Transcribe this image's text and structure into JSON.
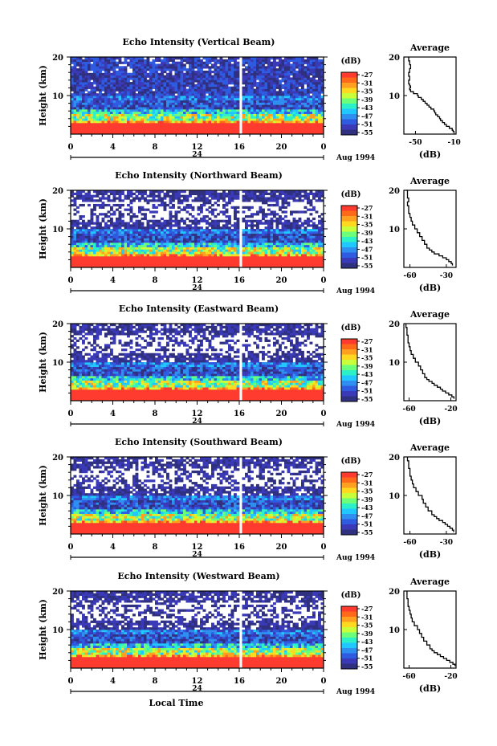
{
  "chart_data": {
    "type": "heatmap",
    "panels": [
      {
        "title": "Echo Intensity (Vertical Beam)",
        "profile_title": "Average",
        "profile_xticks": [
          "-50",
          "-10"
        ],
        "profile_xlim": [
          -62,
          -8
        ],
        "profile": [
          [
            0.5,
            -11
          ],
          [
            1,
            -12
          ],
          [
            1.5,
            -15
          ],
          [
            2,
            -18
          ],
          [
            2.5,
            -20
          ],
          [
            3,
            -22
          ],
          [
            3.5,
            -24
          ],
          [
            4,
            -25
          ],
          [
            4.5,
            -27
          ],
          [
            5,
            -29
          ],
          [
            5.5,
            -30
          ],
          [
            6,
            -31
          ],
          [
            6.5,
            -34
          ],
          [
            7,
            -36
          ],
          [
            7.5,
            -38
          ],
          [
            8,
            -40
          ],
          [
            8.5,
            -42
          ],
          [
            9,
            -44
          ],
          [
            9.5,
            -47
          ],
          [
            10,
            -48
          ],
          [
            10.5,
            -52
          ],
          [
            11,
            -55
          ],
          [
            11.5,
            -56
          ],
          [
            12,
            -55
          ],
          [
            12.5,
            -56
          ],
          [
            13,
            -57
          ],
          [
            14,
            -56
          ],
          [
            15,
            -57
          ],
          [
            16,
            -56
          ],
          [
            17,
            -55
          ],
          [
            18,
            -56
          ],
          [
            19,
            -57
          ],
          [
            20,
            -57
          ]
        ]
      },
      {
        "title": "Echo Intensity (Northward Beam)",
        "profile_title": "Average",
        "profile_xticks": [
          "-60",
          "-30"
        ],
        "profile_xlim": [
          -65,
          -22
        ],
        "profile": [
          [
            0.5,
            -25
          ],
          [
            1,
            -26
          ],
          [
            1.5,
            -28
          ],
          [
            2,
            -30
          ],
          [
            2.5,
            -33
          ],
          [
            3,
            -36
          ],
          [
            3.5,
            -40
          ],
          [
            4,
            -42
          ],
          [
            4.5,
            -44
          ],
          [
            5,
            -46
          ],
          [
            6,
            -48
          ],
          [
            7,
            -50
          ],
          [
            8,
            -52
          ],
          [
            9,
            -54
          ],
          [
            10,
            -56
          ],
          [
            11,
            -58
          ],
          [
            12,
            -59
          ],
          [
            13,
            -60
          ],
          [
            14,
            -61
          ],
          [
            15,
            -61
          ],
          [
            16,
            -62
          ],
          [
            17,
            -61
          ],
          [
            18,
            -62
          ],
          [
            19,
            -62
          ],
          [
            20,
            -63
          ]
        ]
      },
      {
        "title": "Echo Intensity (Eastward Beam)",
        "profile_title": "Average",
        "profile_xticks": [
          "-60",
          "-20"
        ],
        "profile_xlim": [
          -65,
          -15
        ],
        "profile": [
          [
            0.5,
            -17
          ],
          [
            1,
            -19
          ],
          [
            1.5,
            -22
          ],
          [
            2,
            -25
          ],
          [
            2.5,
            -28
          ],
          [
            3,
            -30
          ],
          [
            3.5,
            -33
          ],
          [
            4,
            -36
          ],
          [
            4.5,
            -38
          ],
          [
            5,
            -41
          ],
          [
            5.5,
            -43
          ],
          [
            6,
            -45
          ],
          [
            7,
            -47
          ],
          [
            8,
            -49
          ],
          [
            9,
            -51
          ],
          [
            10,
            -54
          ],
          [
            11,
            -56
          ],
          [
            12,
            -58
          ],
          [
            13,
            -59
          ],
          [
            14,
            -60
          ],
          [
            15,
            -61
          ],
          [
            16,
            -61
          ],
          [
            17,
            -62
          ],
          [
            18,
            -62
          ],
          [
            19,
            -63
          ],
          [
            20,
            -63
          ]
        ]
      },
      {
        "title": "Echo Intensity (Southward Beam)",
        "profile_title": "Average",
        "profile_xticks": [
          "-60",
          "-30"
        ],
        "profile_xlim": [
          -65,
          -22
        ],
        "profile": [
          [
            0.5,
            -24
          ],
          [
            1,
            -25
          ],
          [
            1.5,
            -27
          ],
          [
            2,
            -29
          ],
          [
            2.5,
            -31
          ],
          [
            3,
            -33
          ],
          [
            3.5,
            -36
          ],
          [
            4,
            -38
          ],
          [
            4.5,
            -40
          ],
          [
            5,
            -42
          ],
          [
            6,
            -45
          ],
          [
            7,
            -47
          ],
          [
            8,
            -49
          ],
          [
            9,
            -50
          ],
          [
            10,
            -53
          ],
          [
            11,
            -55
          ],
          [
            12,
            -57
          ],
          [
            13,
            -58
          ],
          [
            14,
            -59
          ],
          [
            15,
            -60
          ],
          [
            16,
            -60
          ],
          [
            17,
            -61
          ],
          [
            18,
            -61
          ],
          [
            19,
            -62
          ],
          [
            20,
            -62
          ]
        ]
      },
      {
        "title": "Echo Intensity (Westward Beam)",
        "profile_title": "Average",
        "profile_xticks": [
          "-60",
          "-20"
        ],
        "profile_xlim": [
          -65,
          -15
        ],
        "profile": [
          [
            0.5,
            -16
          ],
          [
            1,
            -18
          ],
          [
            1.5,
            -21
          ],
          [
            2,
            -24
          ],
          [
            2.5,
            -27
          ],
          [
            3,
            -30
          ],
          [
            3.5,
            -33
          ],
          [
            4,
            -36
          ],
          [
            4.5,
            -38
          ],
          [
            5,
            -40
          ],
          [
            6,
            -43
          ],
          [
            7,
            -46
          ],
          [
            8,
            -48
          ],
          [
            9,
            -50
          ],
          [
            10,
            -52
          ],
          [
            11,
            -55
          ],
          [
            12,
            -57
          ],
          [
            13,
            -58
          ],
          [
            14,
            -59
          ],
          [
            15,
            -60
          ],
          [
            16,
            -61
          ],
          [
            17,
            -61
          ],
          [
            18,
            -62
          ],
          [
            19,
            -62
          ],
          [
            20,
            -62
          ]
        ]
      }
    ],
    "ylabel": "Height (km)",
    "ylim": [
      0,
      20
    ],
    "yticks": [
      "20",
      "10"
    ],
    "xlim": [
      0,
      24
    ],
    "xticks": [
      "0",
      "4",
      "8",
      "12",
      "16",
      "20",
      "0"
    ],
    "xtick_values": [
      0,
      4,
      8,
      12,
      16,
      20,
      24
    ],
    "date_marker_label": "24",
    "date_label": "Aug 1994",
    "xlabel": "Local Time",
    "profile_xlabel": "(dB)",
    "profile_yticks": [
      "20",
      "10"
    ],
    "colorbar": {
      "unit_label": "(dB)",
      "tick_labels": [
        "-27",
        "-31",
        "-35",
        "-39",
        "-43",
        "-47",
        "-51",
        "-55"
      ],
      "levels": [
        -27,
        -31,
        -35,
        -39,
        -43,
        -47,
        -51,
        -55
      ],
      "colors": [
        "#ff3b2f",
        "#ff6a1a",
        "#ffa020",
        "#ffd820",
        "#c8ff3a",
        "#6cff7a",
        "#2cf0c8",
        "#20c8ff",
        "#2f8ff0",
        "#2f5be0",
        "#3a3ab8",
        "#303080"
      ]
    },
    "data_gap_time": 16
  }
}
